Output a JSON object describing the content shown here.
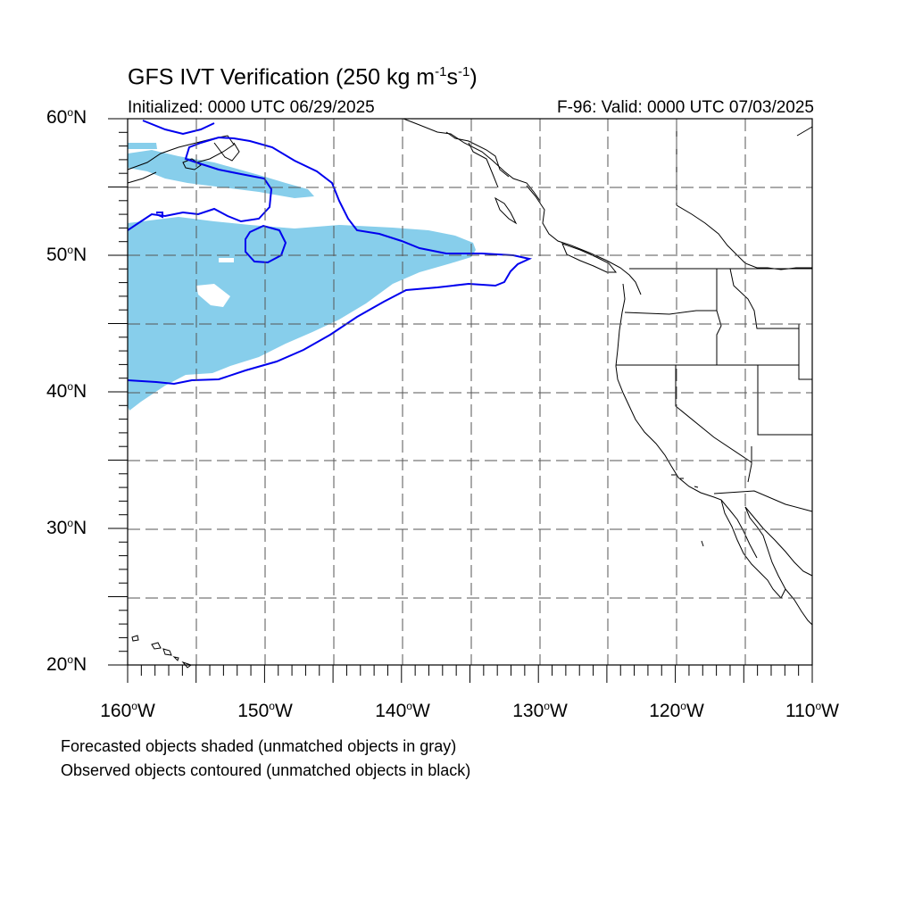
{
  "title": {
    "prefix": "GFS IVT Verification (250 kg m",
    "exp1": "-1",
    "mid": "s",
    "exp2": "-1",
    "suffix": ")"
  },
  "initialized": "Initialized: 0000 UTC 06/29/2025",
  "valid": "F-96: Valid: 0000 UTC 07/03/2025",
  "lat_labels": [
    {
      "num": "60",
      "hemi": "N"
    },
    {
      "num": "50",
      "hemi": "N"
    },
    {
      "num": "40",
      "hemi": "N"
    },
    {
      "num": "30",
      "hemi": "N"
    },
    {
      "num": "20",
      "hemi": "N"
    }
  ],
  "lon_labels": [
    {
      "num": "160",
      "hemi": "W"
    },
    {
      "num": "150",
      "hemi": "W"
    },
    {
      "num": "140",
      "hemi": "W"
    },
    {
      "num": "130",
      "hemi": "W"
    },
    {
      "num": "120",
      "hemi": "W"
    },
    {
      "num": "110",
      "hemi": "W"
    }
  ],
  "footnotes": [
    "Forecasted objects shaded (unmatched objects in gray)",
    "Observed objects contoured (unmatched objects in black)"
  ],
  "colors": {
    "forecast_fill": "#87ceeb",
    "observed_contour": "#0000ee",
    "coastline": "#000000",
    "grid": "#555555"
  },
  "map": {
    "projection": "cylindrical equidistant",
    "lon_range": [
      -160,
      -110
    ],
    "lat_range": [
      20,
      60
    ],
    "grid": "dashed, every 5 degrees"
  }
}
